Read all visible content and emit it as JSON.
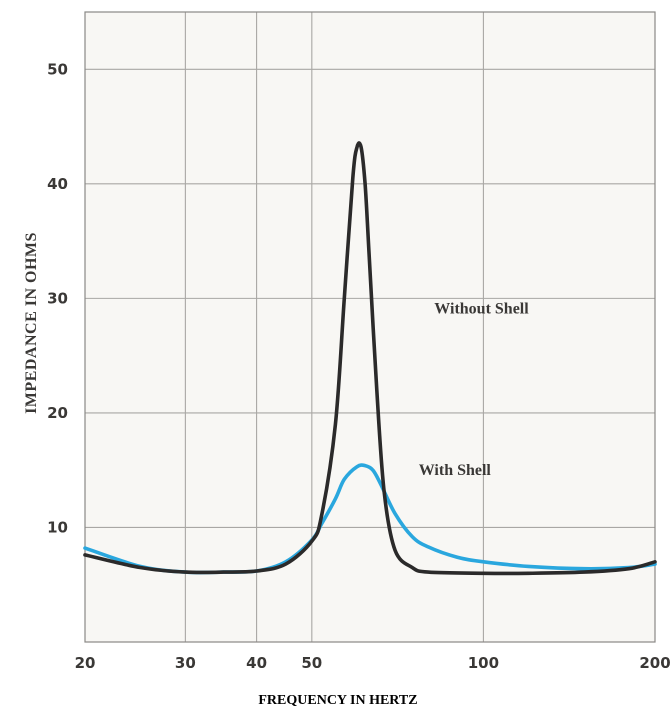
{
  "chart_data": {
    "type": "line",
    "title": "",
    "xlabel": "FREQUENCY IN HERTZ",
    "ylabel": "IMPEDANCE IN OHMS",
    "x_scale": "log",
    "xlim": [
      20,
      200
    ],
    "ylim": [
      0,
      55
    ],
    "x_ticks": [
      20,
      30,
      40,
      50,
      100,
      200
    ],
    "x_tick_labels": [
      "20",
      "30",
      "40",
      "50",
      "100",
      "200"
    ],
    "y_ticks": [
      10,
      20,
      30,
      40,
      50
    ],
    "y_tick_labels": [
      "10",
      "20",
      "30",
      "40",
      "50"
    ],
    "grid": true,
    "legend": "none",
    "series": [
      {
        "name": "Without Shell",
        "color": "#2b2a2a",
        "x": [
          20,
          25,
          30,
          35,
          40,
          45,
          50,
          52,
          55,
          57,
          59,
          60,
          61,
          62,
          63,
          65,
          67,
          70,
          75,
          80,
          100,
          120,
          150,
          180,
          200
        ],
        "y": [
          7.6,
          6.5,
          6.1,
          6.1,
          6.2,
          6.8,
          8.8,
          11,
          19,
          30,
          40.5,
          43.2,
          43.2,
          40,
          34,
          22,
          13,
          8,
          6.5,
          6.1,
          6.0,
          6.0,
          6.1,
          6.4,
          7.0
        ]
      },
      {
        "name": "With Shell",
        "color": "#2aa7de",
        "x": [
          20,
          25,
          30,
          35,
          40,
          45,
          50,
          52,
          55,
          57,
          60,
          62,
          64,
          66,
          70,
          75,
          80,
          90,
          100,
          120,
          150,
          180,
          200
        ],
        "y": [
          8.2,
          6.6,
          6.1,
          6.1,
          6.2,
          7.0,
          8.9,
          10.3,
          12.5,
          14.2,
          15.3,
          15.4,
          15.0,
          13.8,
          11.2,
          9.2,
          8.3,
          7.4,
          7.0,
          6.6,
          6.4,
          6.5,
          6.8
        ]
      }
    ],
    "annotations": [
      {
        "text": "Without Shell",
        "series": "Without Shell"
      },
      {
        "text": "With Shell",
        "series": "With Shell"
      }
    ]
  }
}
